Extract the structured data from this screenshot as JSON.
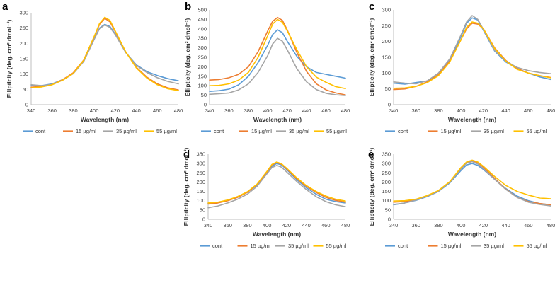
{
  "figure": {
    "panels": [
      "a",
      "b",
      "c",
      "d",
      "e"
    ]
  },
  "chart_data": [
    {
      "panel": "a",
      "type": "line",
      "xlabel": "Wavelength (nm)",
      "ylabel": "Ellipticity (deg. cm² dmol⁻¹)",
      "xlim": [
        340,
        480
      ],
      "ylim": [
        0,
        300
      ],
      "xticks": [
        340,
        360,
        380,
        400,
        420,
        440,
        460,
        480
      ],
      "yticks": [
        0,
        50,
        100,
        150,
        200,
        250,
        300
      ],
      "legend_position": "bottom",
      "grid": false,
      "x": [
        340,
        350,
        360,
        370,
        380,
        390,
        400,
        405,
        410,
        415,
        420,
        430,
        440,
        450,
        460,
        470,
        480
      ],
      "series": [
        {
          "name": "cont",
          "color": "#5b9bd5",
          "values": [
            62,
            62,
            68,
            82,
            102,
            142,
            215,
            250,
            262,
            255,
            230,
            170,
            130,
            108,
            95,
            85,
            78
          ]
        },
        {
          "name": "15 µg/ml",
          "color": "#ed7d31",
          "values": [
            57,
            60,
            66,
            82,
            104,
            146,
            222,
            262,
            282,
            270,
            238,
            172,
            122,
            90,
            68,
            55,
            48
          ]
        },
        {
          "name": "35 µg/ml",
          "color": "#a5a5a5",
          "values": [
            65,
            62,
            66,
            80,
            101,
            141,
            213,
            248,
            260,
            252,
            228,
            170,
            128,
            105,
            88,
            76,
            68
          ]
        },
        {
          "name": "55 µg/ml",
          "color": "#ffc000",
          "values": [
            55,
            58,
            65,
            80,
            102,
            145,
            223,
            265,
            285,
            275,
            240,
            172,
            120,
            87,
            65,
            52,
            46
          ]
        }
      ]
    },
    {
      "panel": "b",
      "type": "line",
      "xlabel": "Wavelength (nm)",
      "ylabel": "Ellipticity (deg. cm² dmol⁻¹)",
      "xlim": [
        340,
        480
      ],
      "ylim": [
        0,
        500
      ],
      "xticks": [
        340,
        360,
        380,
        400,
        420,
        440,
        460,
        480
      ],
      "yticks": [
        0,
        50,
        100,
        150,
        200,
        250,
        300,
        350,
        400,
        450,
        500
      ],
      "legend_position": "bottom",
      "grid": false,
      "x": [
        340,
        350,
        360,
        370,
        380,
        390,
        400,
        405,
        410,
        415,
        420,
        430,
        440,
        450,
        460,
        470,
        480
      ],
      "series": [
        {
          "name": "cont",
          "color": "#5b9bd5",
          "values": [
            70,
            74,
            82,
            105,
            150,
            222,
            315,
            370,
            395,
            380,
            335,
            255,
            200,
            170,
            160,
            150,
            140
          ]
        },
        {
          "name": "15 µg/ml",
          "color": "#ed7d31",
          "values": [
            130,
            133,
            142,
            160,
            200,
            280,
            390,
            440,
            460,
            445,
            395,
            275,
            175,
            110,
            78,
            62,
            52
          ]
        },
        {
          "name": "35 µg/ml",
          "color": "#a5a5a5",
          "values": [
            55,
            58,
            62,
            78,
            110,
            170,
            260,
            320,
            350,
            335,
            290,
            190,
            120,
            80,
            60,
            52,
            48
          ]
        },
        {
          "name": "55 µg/ml",
          "color": "#ffc000",
          "values": [
            100,
            102,
            110,
            130,
            170,
            250,
            365,
            425,
            450,
            435,
            390,
            290,
            200,
            145,
            118,
            95,
            85
          ]
        }
      ]
    },
    {
      "panel": "c",
      "type": "line",
      "xlabel": "Wavelength (nm)",
      "ylabel": "Ellipticity (deg. cm² dmol⁻¹)",
      "xlim": [
        340,
        480
      ],
      "ylim": [
        0,
        300
      ],
      "xticks": [
        340,
        360,
        380,
        400,
        420,
        440,
        460,
        480
      ],
      "yticks": [
        0,
        50,
        100,
        150,
        200,
        250,
        300
      ],
      "legend_position": "bottom",
      "grid": false,
      "x": [
        340,
        350,
        360,
        370,
        380,
        390,
        400,
        405,
        410,
        415,
        420,
        430,
        440,
        450,
        460,
        470,
        480
      ],
      "series": [
        {
          "name": "cont",
          "color": "#5b9bd5",
          "values": [
            68,
            65,
            70,
            75,
            95,
            140,
            215,
            258,
            275,
            268,
            235,
            170,
            135,
            115,
            100,
            88,
            80
          ]
        },
        {
          "name": "15 µg/ml",
          "color": "#ed7d31",
          "values": [
            48,
            50,
            58,
            72,
            95,
            138,
            205,
            240,
            258,
            255,
            240,
            180,
            140,
            115,
            100,
            92,
            86
          ]
        },
        {
          "name": "35 µg/ml",
          "color": "#a5a5a5",
          "values": [
            72,
            68,
            66,
            76,
            100,
            145,
            220,
            262,
            282,
            270,
            238,
            172,
            138,
            118,
            108,
            102,
            98
          ]
        },
        {
          "name": "55 µg/ml",
          "color": "#ffc000",
          "values": [
            52,
            53,
            58,
            70,
            92,
            135,
            205,
            245,
            262,
            258,
            240,
            178,
            138,
            112,
            100,
            92,
            85
          ]
        }
      ]
    },
    {
      "panel": "d",
      "type": "line",
      "xlabel": "Wavelength (nm)",
      "ylabel": "Ellipticity (deg. cm² dmol⁻¹)",
      "xlim": [
        340,
        480
      ],
      "ylim": [
        0,
        350
      ],
      "xticks": [
        340,
        360,
        380,
        400,
        420,
        440,
        460,
        480
      ],
      "yticks": [
        0,
        50,
        100,
        150,
        200,
        250,
        300,
        350
      ],
      "legend_position": "bottom",
      "grid": false,
      "x": [
        340,
        350,
        360,
        370,
        380,
        390,
        400,
        405,
        410,
        415,
        420,
        430,
        440,
        450,
        460,
        470,
        480
      ],
      "series": [
        {
          "name": "cont",
          "color": "#5b9bd5",
          "values": [
            85,
            90,
            102,
            120,
            145,
            185,
            250,
            285,
            300,
            292,
            268,
            215,
            170,
            135,
            108,
            95,
            88
          ]
        },
        {
          "name": "15 µg/ml",
          "color": "#ed7d31",
          "values": [
            82,
            88,
            100,
            118,
            145,
            188,
            255,
            292,
            305,
            296,
            272,
            220,
            178,
            145,
            118,
            102,
            92
          ]
        },
        {
          "name": "35 µg/ml",
          "color": "#a5a5a5",
          "values": [
            62,
            72,
            88,
            108,
            135,
            178,
            245,
            278,
            290,
            280,
            255,
            205,
            160,
            122,
            95,
            78,
            68
          ]
        },
        {
          "name": "55 µg/ml",
          "color": "#ffc000",
          "values": [
            88,
            92,
            104,
            122,
            148,
            190,
            258,
            295,
            308,
            298,
            275,
            225,
            182,
            150,
            125,
            108,
            98
          ]
        }
      ]
    },
    {
      "panel": "e",
      "type": "line",
      "xlabel": "Wavelength (nm)",
      "ylabel": "Ellipticity (deg. cm² dmol⁻¹)",
      "xlim": [
        340,
        480
      ],
      "ylim": [
        0,
        350
      ],
      "xticks": [
        340,
        360,
        380,
        400,
        420,
        440,
        460,
        480
      ],
      "yticks": [
        0,
        50,
        100,
        150,
        200,
        250,
        300,
        350
      ],
      "legend_position": "bottom",
      "grid": false,
      "x": [
        340,
        350,
        360,
        370,
        380,
        390,
        400,
        405,
        410,
        415,
        420,
        430,
        440,
        450,
        460,
        470,
        480
      ],
      "series": [
        {
          "name": "cont",
          "color": "#5b9bd5",
          "values": [
            78,
            88,
            102,
            122,
            150,
            195,
            262,
            292,
            300,
            290,
            268,
            215,
            165,
            125,
            100,
            85,
            78
          ]
        },
        {
          "name": "15 µg/ml",
          "color": "#ed7d31",
          "values": [
            92,
            96,
            105,
            125,
            152,
            200,
            275,
            305,
            315,
            305,
            280,
            220,
            162,
            118,
            95,
            85,
            78
          ]
        },
        {
          "name": "35 µg/ml",
          "color": "#a5a5a5",
          "values": [
            80,
            88,
            104,
            125,
            152,
            198,
            270,
            302,
            310,
            298,
            272,
            215,
            160,
            118,
            92,
            80,
            72
          ]
        },
        {
          "name": "55 µg/ml",
          "color": "#ffc000",
          "values": [
            98,
            100,
            108,
            128,
            155,
            202,
            278,
            308,
            318,
            308,
            285,
            230,
            182,
            150,
            130,
            115,
            110
          ]
        }
      ]
    }
  ]
}
